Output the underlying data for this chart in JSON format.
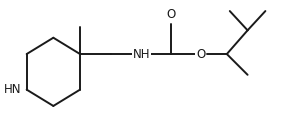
{
  "background_color": "#ffffff",
  "line_color": "#1a1a1a",
  "line_width": 1.4,
  "font_size": 8.5,
  "figsize": [
    2.98,
    1.33
  ],
  "dpi": 100,
  "xlim": [
    0,
    10
  ],
  "ylim": [
    0,
    4.46
  ]
}
